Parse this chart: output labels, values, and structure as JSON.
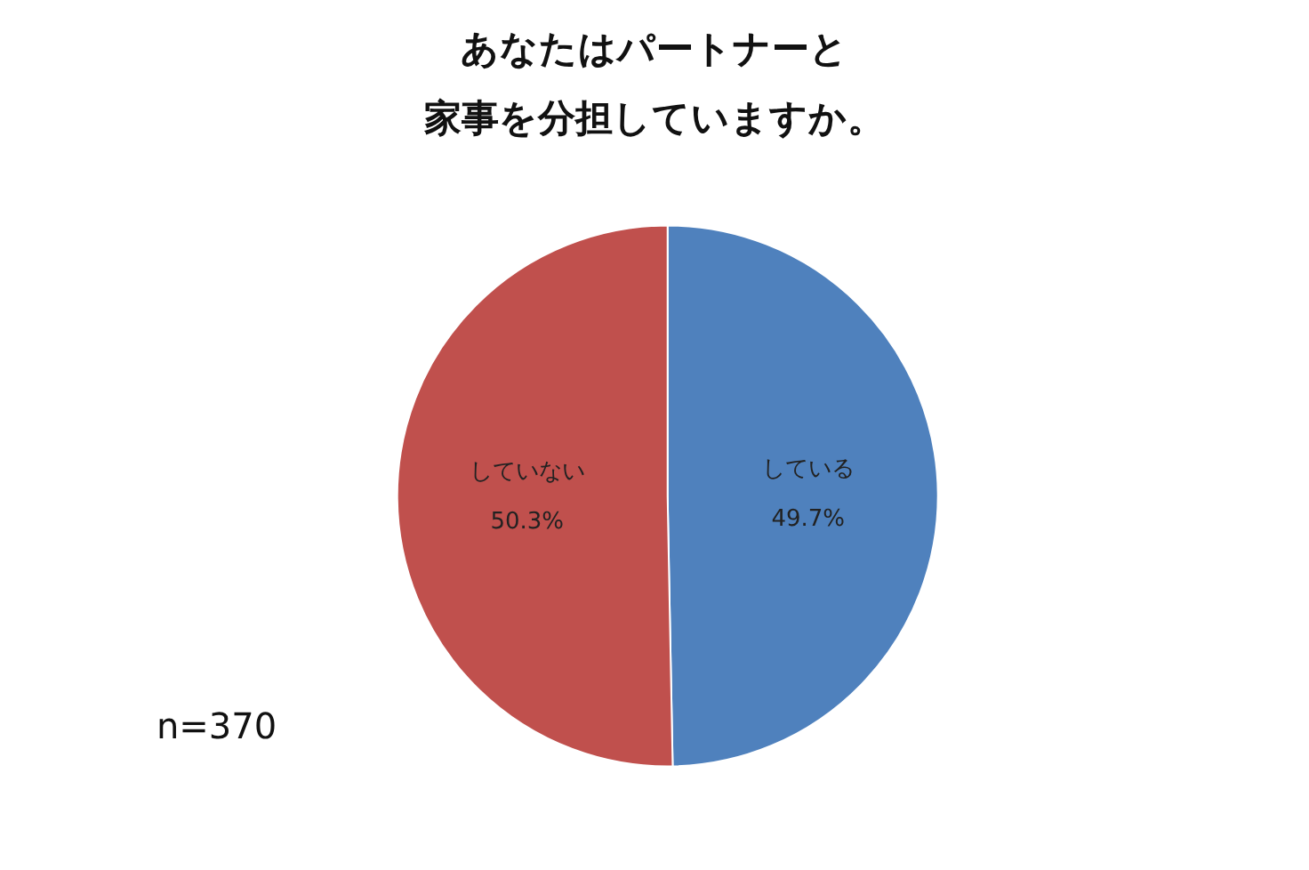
{
  "chart_data": {
    "type": "pie",
    "title": "あなたはパートナーと",
    "subtitle": "家事を分担していますか。",
    "categories": [
      "している",
      "していない"
    ],
    "values": [
      49.7,
      50.3
    ],
    "colors": [
      "#4f81bd",
      "#c0504d"
    ],
    "value_labels": [
      "49.7%",
      "50.3%"
    ],
    "legend": false,
    "annotations": [
      "n=370"
    ]
  }
}
